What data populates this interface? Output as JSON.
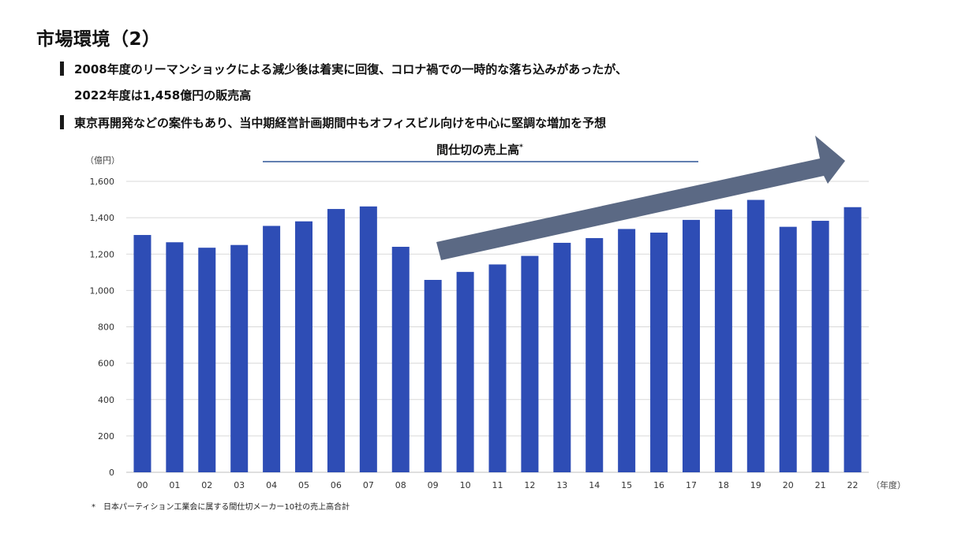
{
  "slide": {
    "title": "市場環境（2）",
    "bullets": [
      "2008年度のリーマンショックによる減少後は着実に回復、コロナ禍での一時的な落ち込みがあったが、",
      "2022年度は1,458億円の販売高",
      "東京再開発などの案件もあり、当中期経営計画期間中もオフィスビル向けを中心に堅調な増加を予想"
    ],
    "footnote": "*　日本パーティション工業会に属する間仕切メーカー10社の売上高合計"
  },
  "colors": {
    "bar": "#2E4DB5",
    "arrow": "#5B6984",
    "title_rule": "#2F5597",
    "grid": "#D9D9D9"
  },
  "chart_data": {
    "type": "bar",
    "title": "間仕切の売上高",
    "title_mark": "*",
    "ylabel": "（億円）",
    "xlabel": "（年度）",
    "ylim": [
      0,
      1600
    ],
    "yticks": [
      0,
      200,
      400,
      600,
      800,
      1000,
      1200,
      1400,
      1600
    ],
    "ytick_labels": [
      "0",
      "200",
      "400",
      "600",
      "800",
      "1,000",
      "1,200",
      "1,400",
      "1,600"
    ],
    "grid": true,
    "categories": [
      "00",
      "01",
      "02",
      "03",
      "04",
      "05",
      "06",
      "07",
      "08",
      "09",
      "10",
      "11",
      "12",
      "13",
      "14",
      "15",
      "16",
      "17",
      "18",
      "19",
      "20",
      "21",
      "22"
    ],
    "values": [
      1305,
      1265,
      1235,
      1250,
      1355,
      1380,
      1448,
      1462,
      1240,
      1058,
      1102,
      1143,
      1190,
      1262,
      1288,
      1338,
      1318,
      1388,
      1445,
      1498,
      1350,
      1383,
      1458
    ],
    "annotation": "upward trend arrow from 09 to 22"
  }
}
